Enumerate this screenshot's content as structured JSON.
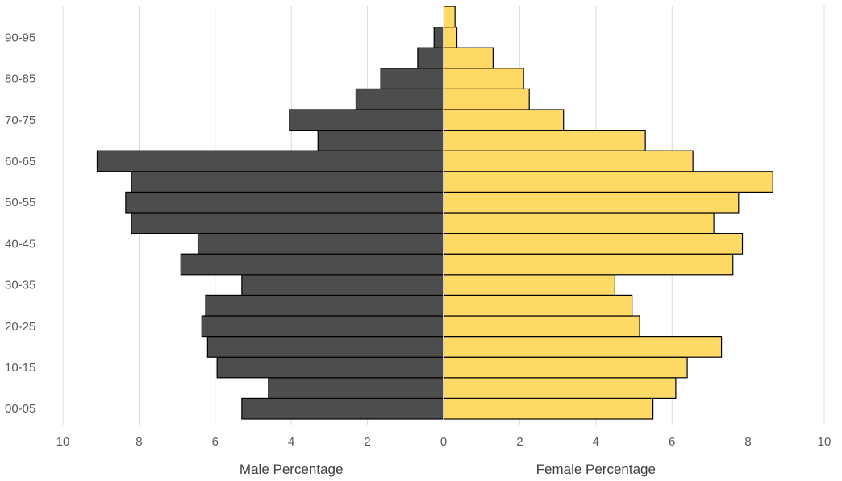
{
  "chart_data": {
    "type": "bar",
    "orientation": "horizontal",
    "subtype": "population-pyramid",
    "categories": [
      "00-05",
      "05-10",
      "10-15",
      "15-20",
      "20-25",
      "25-30",
      "30-35",
      "35-40",
      "40-45",
      "45-50",
      "50-55",
      "55-60",
      "60-65",
      "65-70",
      "70-75",
      "75-80",
      "80-85",
      "85-90",
      "90-95",
      "95-100"
    ],
    "category_tick_labels": [
      "00-05",
      "10-15",
      "20-25",
      "30-35",
      "40-45",
      "50-55",
      "60-65",
      "70-75",
      "80-85",
      "90-95"
    ],
    "series": [
      {
        "side": "left",
        "color": "#4d4d4d",
        "values": [
          5.3,
          4.6,
          5.95,
          6.2,
          6.35,
          6.25,
          5.3,
          6.9,
          6.45,
          8.2,
          8.35,
          8.2,
          9.1,
          3.3,
          4.05,
          2.3,
          1.65,
          0.68,
          0.25,
          0
        ]
      },
      {
        "side": "right",
        "color": "#ffd966",
        "values": [
          5.5,
          6.1,
          6.4,
          7.3,
          5.15,
          4.95,
          4.5,
          7.6,
          7.85,
          7.1,
          7.75,
          8.65,
          6.55,
          5.3,
          3.15,
          2.25,
          2.1,
          1.3,
          0.35,
          0.3
        ]
      }
    ],
    "x_ticks": [
      "10",
      "8",
      "6",
      "4",
      "2",
      "0",
      "2",
      "4",
      "6",
      "8",
      "10"
    ],
    "xlim": [
      -10,
      10
    ],
    "xlabel_left": "Male Percentage",
    "xlabel_right": "Female Percentage",
    "grid": "vertical",
    "legend": "none"
  }
}
